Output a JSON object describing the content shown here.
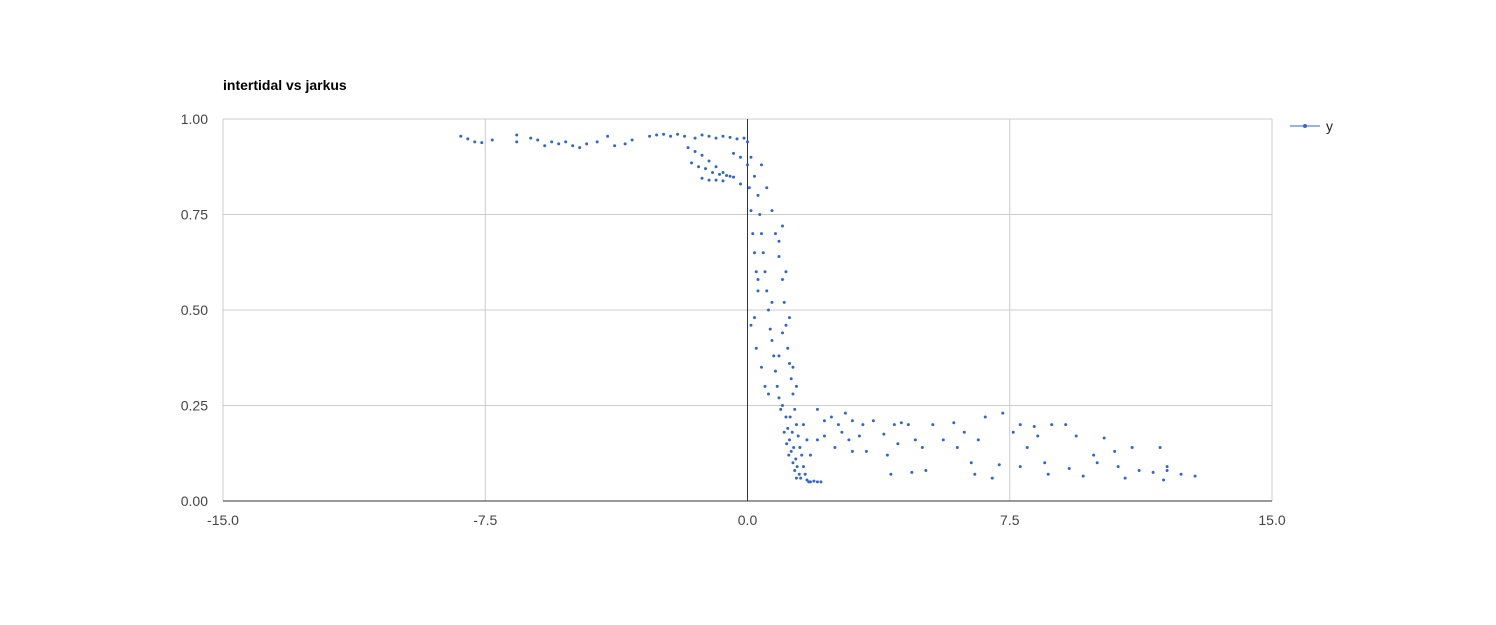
{
  "chart_data": {
    "type": "scatter",
    "title": "intertidal vs jarkus",
    "xlabel": "",
    "ylabel": "",
    "xlim": [
      -15.0,
      15.0
    ],
    "ylim": [
      0.0,
      1.0
    ],
    "x_ticks": [
      -15.0,
      -7.5,
      0.0,
      7.5,
      15.0
    ],
    "x_tick_labels": [
      "-15.0",
      "-7.5",
      "0.0",
      "7.5",
      "15.0"
    ],
    "y_ticks": [
      0.0,
      0.25,
      0.5,
      0.75,
      1.0
    ],
    "y_tick_labels": [
      "0.00",
      "0.25",
      "0.50",
      "0.75",
      "1.00"
    ],
    "grid": true,
    "legend_position": "right",
    "color": "#3366cc",
    "series": [
      {
        "name": "y",
        "points": [
          [
            -8.2,
            0.955
          ],
          [
            -8.0,
            0.948
          ],
          [
            -7.8,
            0.94
          ],
          [
            -7.6,
            0.938
          ],
          [
            -7.3,
            0.945
          ],
          [
            -6.6,
            0.958
          ],
          [
            -6.6,
            0.94
          ],
          [
            -6.2,
            0.95
          ],
          [
            -6.0,
            0.945
          ],
          [
            -5.8,
            0.93
          ],
          [
            -5.6,
            0.94
          ],
          [
            -5.4,
            0.935
          ],
          [
            -5.2,
            0.94
          ],
          [
            -5.0,
            0.93
          ],
          [
            -4.8,
            0.925
          ],
          [
            -4.6,
            0.935
          ],
          [
            -4.3,
            0.94
          ],
          [
            -4.0,
            0.955
          ],
          [
            -3.8,
            0.93
          ],
          [
            -3.5,
            0.935
          ],
          [
            -3.3,
            0.945
          ],
          [
            -2.8,
            0.955
          ],
          [
            -2.6,
            0.958
          ],
          [
            -2.4,
            0.96
          ],
          [
            -2.2,
            0.955
          ],
          [
            -2.0,
            0.96
          ],
          [
            -1.8,
            0.955
          ],
          [
            -1.5,
            0.95
          ],
          [
            -1.3,
            0.958
          ],
          [
            -1.1,
            0.955
          ],
          [
            -0.9,
            0.95
          ],
          [
            -0.7,
            0.955
          ],
          [
            -0.5,
            0.952
          ],
          [
            -0.3,
            0.948
          ],
          [
            -0.1,
            0.95
          ],
          [
            -1.7,
            0.925
          ],
          [
            -1.5,
            0.915
          ],
          [
            -1.3,
            0.905
          ],
          [
            -1.1,
            0.89
          ],
          [
            -0.9,
            0.875
          ],
          [
            -0.7,
            0.86
          ],
          [
            -0.5,
            0.85
          ],
          [
            -1.6,
            0.885
          ],
          [
            -1.4,
            0.875
          ],
          [
            -1.2,
            0.87
          ],
          [
            -1.0,
            0.86
          ],
          [
            -0.8,
            0.855
          ],
          [
            -0.6,
            0.852
          ],
          [
            -0.4,
            0.848
          ],
          [
            -1.3,
            0.845
          ],
          [
            -1.1,
            0.84
          ],
          [
            -0.9,
            0.84
          ],
          [
            -0.7,
            0.838
          ],
          [
            -0.2,
            0.83
          ],
          [
            -0.2,
            0.9
          ],
          [
            -0.4,
            0.91
          ],
          [
            0.0,
            0.94
          ],
          [
            0.0,
            0.88
          ],
          [
            0.05,
            0.82
          ],
          [
            0.1,
            0.76
          ],
          [
            0.15,
            0.7
          ],
          [
            0.2,
            0.65
          ],
          [
            0.25,
            0.6
          ],
          [
            0.3,
            0.55
          ],
          [
            0.1,
            0.9
          ],
          [
            0.2,
            0.85
          ],
          [
            0.3,
            0.8
          ],
          [
            0.35,
            0.75
          ],
          [
            0.4,
            0.7
          ],
          [
            0.45,
            0.65
          ],
          [
            0.5,
            0.6
          ],
          [
            0.55,
            0.55
          ],
          [
            0.6,
            0.5
          ],
          [
            0.65,
            0.45
          ],
          [
            0.7,
            0.42
          ],
          [
            0.75,
            0.38
          ],
          [
            0.8,
            0.34
          ],
          [
            0.85,
            0.3
          ],
          [
            0.9,
            0.27
          ],
          [
            0.95,
            0.24
          ],
          [
            0.4,
            0.88
          ],
          [
            0.55,
            0.82
          ],
          [
            0.7,
            0.76
          ],
          [
            0.8,
            0.7
          ],
          [
            0.9,
            0.64
          ],
          [
            1.0,
            0.58
          ],
          [
            1.05,
            0.52
          ],
          [
            1.1,
            0.46
          ],
          [
            1.15,
            0.4
          ],
          [
            1.2,
            0.36
          ],
          [
            1.25,
            0.32
          ],
          [
            1.3,
            0.28
          ],
          [
            1.35,
            0.24
          ],
          [
            1.4,
            0.2
          ],
          [
            1.45,
            0.17
          ],
          [
            1.5,
            0.14
          ],
          [
            1.0,
            0.25
          ],
          [
            1.1,
            0.22
          ],
          [
            1.15,
            0.19
          ],
          [
            1.2,
            0.16
          ],
          [
            1.25,
            0.13
          ],
          [
            1.3,
            0.1
          ],
          [
            1.35,
            0.08
          ],
          [
            1.4,
            0.06
          ],
          [
            1.05,
            0.18
          ],
          [
            1.12,
            0.15
          ],
          [
            1.18,
            0.12
          ],
          [
            1.22,
            0.22
          ],
          [
            1.28,
            0.18
          ],
          [
            1.32,
            0.14
          ],
          [
            1.38,
            0.11
          ],
          [
            1.42,
            0.09
          ],
          [
            1.48,
            0.07
          ],
          [
            1.52,
            0.06
          ],
          [
            1.55,
            0.12
          ],
          [
            1.6,
            0.09
          ],
          [
            1.65,
            0.07
          ],
          [
            1.7,
            0.055
          ],
          [
            1.75,
            0.05
          ],
          [
            1.8,
            0.05
          ],
          [
            1.9,
            0.052
          ],
          [
            2.0,
            0.05
          ],
          [
            2.1,
            0.05
          ],
          [
            1.6,
            0.2
          ],
          [
            1.7,
            0.16
          ],
          [
            1.8,
            0.12
          ],
          [
            0.3,
            0.58
          ],
          [
            0.2,
            0.48
          ],
          [
            0.1,
            0.46
          ],
          [
            0.25,
            0.4
          ],
          [
            0.4,
            0.35
          ],
          [
            0.5,
            0.3
          ],
          [
            0.6,
            0.28
          ],
          [
            0.7,
            0.52
          ],
          [
            0.9,
            0.68
          ],
          [
            1.0,
            0.72
          ],
          [
            1.1,
            0.6
          ],
          [
            1.0,
            0.44
          ],
          [
            0.9,
            0.38
          ],
          [
            1.3,
            0.35
          ],
          [
            1.2,
            0.48
          ],
          [
            1.4,
            0.3
          ],
          [
            2.0,
            0.24
          ],
          [
            2.2,
            0.21
          ],
          [
            2.4,
            0.22
          ],
          [
            2.6,
            0.2
          ],
          [
            2.8,
            0.23
          ],
          [
            3.0,
            0.21
          ],
          [
            3.3,
            0.2
          ],
          [
            2.0,
            0.16
          ],
          [
            2.5,
            0.14
          ],
          [
            3.0,
            0.13
          ],
          [
            2.2,
            0.17
          ],
          [
            2.7,
            0.18
          ],
          [
            3.6,
            0.21
          ],
          [
            4.2,
            0.2
          ],
          [
            4.4,
            0.205
          ],
          [
            4.6,
            0.2
          ],
          [
            5.3,
            0.2
          ],
          [
            5.9,
            0.205
          ],
          [
            6.8,
            0.22
          ],
          [
            7.3,
            0.23
          ],
          [
            7.8,
            0.2
          ],
          [
            8.2,
            0.195
          ],
          [
            8.7,
            0.2
          ],
          [
            9.1,
            0.2
          ],
          [
            3.9,
            0.175
          ],
          [
            4.3,
            0.15
          ],
          [
            4.0,
            0.12
          ],
          [
            4.8,
            0.16
          ],
          [
            5.0,
            0.14
          ],
          [
            6.2,
            0.18
          ],
          [
            6.6,
            0.16
          ],
          [
            7.6,
            0.18
          ],
          [
            8.3,
            0.17
          ],
          [
            9.4,
            0.17
          ],
          [
            10.2,
            0.165
          ],
          [
            11.0,
            0.14
          ],
          [
            11.8,
            0.14
          ],
          [
            4.1,
            0.07
          ],
          [
            4.7,
            0.075
          ],
          [
            5.1,
            0.08
          ],
          [
            6.0,
            0.14
          ],
          [
            6.4,
            0.1
          ],
          [
            7.2,
            0.095
          ],
          [
            7.8,
            0.09
          ],
          [
            8.5,
            0.1
          ],
          [
            9.2,
            0.085
          ],
          [
            10.0,
            0.1
          ],
          [
            10.6,
            0.09
          ],
          [
            11.2,
            0.08
          ],
          [
            11.6,
            0.075
          ],
          [
            12.0,
            0.08
          ],
          [
            12.4,
            0.07
          ],
          [
            12.8,
            0.065
          ],
          [
            6.5,
            0.07
          ],
          [
            7.0,
            0.06
          ],
          [
            8.6,
            0.07
          ],
          [
            9.6,
            0.065
          ],
          [
            10.8,
            0.06
          ],
          [
            11.9,
            0.055
          ],
          [
            12.0,
            0.09
          ],
          [
            10.5,
            0.13
          ],
          [
            9.9,
            0.12
          ],
          [
            8.0,
            0.14
          ],
          [
            5.6,
            0.16
          ],
          [
            3.4,
            0.13
          ],
          [
            2.9,
            0.16
          ],
          [
            3.2,
            0.17
          ]
        ]
      }
    ]
  }
}
